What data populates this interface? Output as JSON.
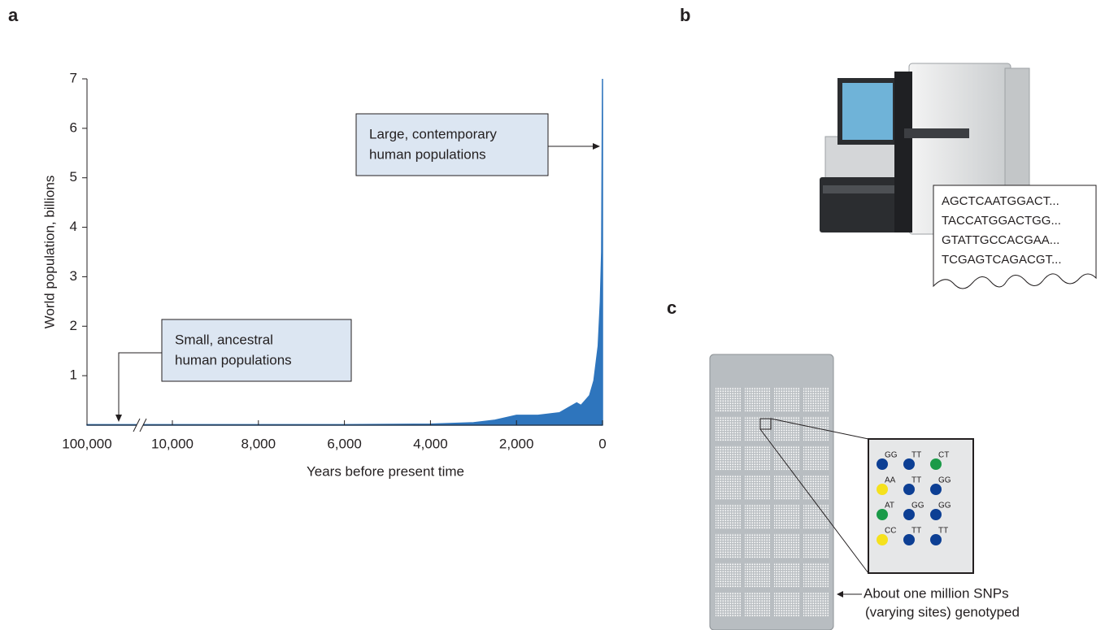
{
  "chart_data": {
    "type": "area",
    "xlabel": "Years before present time",
    "ylabel": "World population, billions",
    "x": [
      100000,
      10000,
      8000,
      6000,
      4000,
      3000,
      2500,
      2000,
      1500,
      1000,
      800,
      600,
      500,
      400,
      300,
      200,
      100,
      50,
      20,
      0
    ],
    "values": [
      0.01,
      0.01,
      0.01,
      0.01,
      0.02,
      0.05,
      0.1,
      0.2,
      0.2,
      0.25,
      0.35,
      0.45,
      0.4,
      0.5,
      0.6,
      0.9,
      1.6,
      2.5,
      3.5,
      7
    ],
    "color": "#2e75bd",
    "xlim": [
      100000,
      0
    ],
    "x_break": [
      100000,
      10000
    ],
    "xticks": [
      {
        "value": 100000,
        "label": "100,000"
      },
      {
        "value": 10000,
        "label": "10,000"
      },
      {
        "value": 8000,
        "label": "8,000"
      },
      {
        "value": 6000,
        "label": "6,000"
      },
      {
        "value": 4000,
        "label": "4,000"
      },
      {
        "value": 2000,
        "label": "2,000"
      },
      0
    ],
    "ylim": [
      0,
      7
    ],
    "yticks": [
      1,
      2,
      3,
      4,
      5,
      6,
      7
    ],
    "annotations": [
      {
        "lines": [
          "Large, contemporary",
          "human populations"
        ]
      },
      {
        "lines": [
          "Small, ancestral",
          "human populations"
        ]
      }
    ]
  },
  "panels": {
    "a": {
      "label": "a"
    },
    "b": {
      "label": "b",
      "sequences": [
        "AGCTCAATGGACT...",
        "TACCATGGACTGG...",
        "GTATTGCCACGAA...",
        "TCGAGTCAGACGT..."
      ]
    },
    "c": {
      "label": "c",
      "genotypes": [
        [
          {
            "label": "GG",
            "color": "#0d3f94"
          },
          {
            "label": "TT",
            "color": "#0d3f94"
          },
          {
            "label": "CT",
            "color": "#1a9a48"
          }
        ],
        [
          {
            "label": "AA",
            "color": "#f5e11d"
          },
          {
            "label": "TT",
            "color": "#0d3f94"
          },
          {
            "label": "GG",
            "color": "#0d3f94"
          }
        ],
        [
          {
            "label": "AT",
            "color": "#1a9a48"
          },
          {
            "label": "GG",
            "color": "#0d3f94"
          },
          {
            "label": "GG",
            "color": "#0d3f94"
          }
        ],
        [
          {
            "label": "CC",
            "color": "#f5e11d"
          },
          {
            "label": "TT",
            "color": "#0d3f94"
          },
          {
            "label": "TT",
            "color": "#0d3f94"
          }
        ]
      ],
      "note": [
        "About one million SNPs",
        "(varying sites) genotyped"
      ]
    }
  }
}
